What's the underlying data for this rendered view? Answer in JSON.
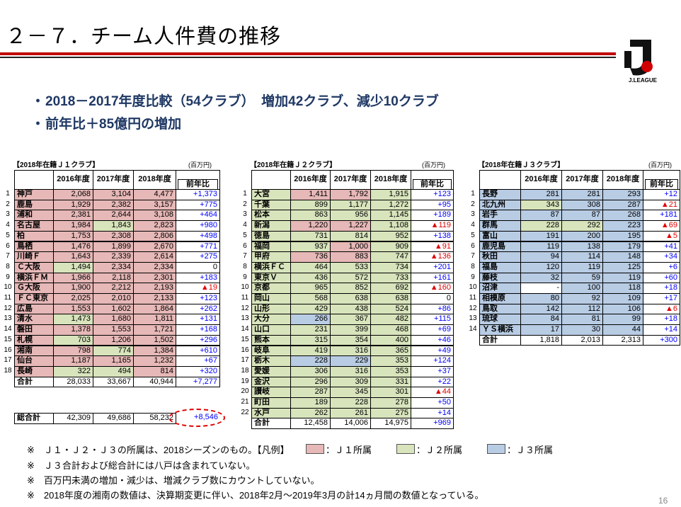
{
  "title": "２－７．チーム人件費の推移",
  "logo": "J.LEAGUE",
  "bullets": [
    "2018－2017年度比較（54クラブ）　増加42クラブ、減少10クラブ",
    "前年比＋85億円の増加"
  ],
  "legend": [
    {
      "color": "#e6b8b7",
      "label": "：Ｊ１所属"
    },
    {
      "color": "#d8e4bc",
      "label": "：Ｊ２所属"
    },
    {
      "color": "#b8cce4",
      "label": "：Ｊ３所属"
    }
  ],
  "tables": [
    {
      "caption": "【2018年在籍Ｊ１クラブ】",
      "unit": "(百万円)",
      "headers": [
        "2016年度",
        "2017年度",
        "2018年度",
        "前年比"
      ],
      "rows": [
        {
          "no": "1",
          "name": "神戸",
          "values": [
            "2,068",
            "3,104",
            "4,477"
          ],
          "diff": "+1,373",
          "fill": [
            0,
            0,
            0
          ]
        },
        {
          "no": "2",
          "name": "鹿島",
          "values": [
            "1,929",
            "2,382",
            "3,157"
          ],
          "diff": "+775",
          "fill": [
            0,
            0,
            0
          ]
        },
        {
          "no": "3",
          "name": "浦和",
          "values": [
            "2,381",
            "2,644",
            "3,108"
          ],
          "diff": "+464",
          "fill": [
            0,
            0,
            0
          ]
        },
        {
          "no": "4",
          "name": "名古屋",
          "values": [
            "1,984",
            "1,843",
            "2,823"
          ],
          "diff": "+980",
          "fill": [
            0,
            1,
            0
          ]
        },
        {
          "no": "5",
          "name": "柏",
          "values": [
            "1,753",
            "2,308",
            "2,806"
          ],
          "diff": "+498",
          "fill": [
            0,
            0,
            0
          ]
        },
        {
          "no": "6",
          "name": "鳥栖",
          "values": [
            "1,476",
            "1,899",
            "2,670"
          ],
          "diff": "+771",
          "fill": [
            0,
            0,
            0
          ]
        },
        {
          "no": "7",
          "name": "川崎Ｆ",
          "values": [
            "1,643",
            "2,339",
            "2,614"
          ],
          "diff": "+275",
          "fill": [
            0,
            0,
            0
          ]
        },
        {
          "no": "8",
          "name": "Ｃ大阪",
          "values": [
            "1,494",
            "2,334",
            "2,334"
          ],
          "diff": "0",
          "fill": [
            1,
            0,
            0
          ]
        },
        {
          "no": "9",
          "name": "横浜ＦＭ",
          "values": [
            "1,966",
            "2,118",
            "2,301"
          ],
          "diff": "+183",
          "fill": [
            0,
            0,
            0
          ]
        },
        {
          "no": "10",
          "name": "Ｇ大阪",
          "values": [
            "1,900",
            "2,212",
            "2,193"
          ],
          "diff": "▲19",
          "fill": [
            0,
            0,
            0
          ]
        },
        {
          "no": "11",
          "name": "ＦＣ東京",
          "values": [
            "2,025",
            "2,010",
            "2,133"
          ],
          "diff": "+123",
          "fill": [
            0,
            0,
            0
          ]
        },
        {
          "no": "12",
          "name": "広島",
          "values": [
            "1,553",
            "1,602",
            "1,864"
          ],
          "diff": "+262",
          "fill": [
            0,
            0,
            0
          ]
        },
        {
          "no": "13",
          "name": "清水",
          "values": [
            "1,473",
            "1,680",
            "1,811"
          ],
          "diff": "+131",
          "fill": [
            1,
            0,
            0
          ]
        },
        {
          "no": "14",
          "name": "磐田",
          "values": [
            "1,378",
            "1,553",
            "1,721"
          ],
          "diff": "+168",
          "fill": [
            0,
            0,
            0
          ]
        },
        {
          "no": "15",
          "name": "札幌",
          "values": [
            "703",
            "1,206",
            "1,502"
          ],
          "diff": "+296",
          "fill": [
            1,
            0,
            0
          ]
        },
        {
          "no": "16",
          "name": "湘南",
          "values": [
            "798",
            "774",
            "1,384"
          ],
          "diff": "+610",
          "fill": [
            0,
            1,
            0
          ]
        },
        {
          "no": "17",
          "name": "仙台",
          "values": [
            "1,187",
            "1,165",
            "1,232"
          ],
          "diff": "+67",
          "fill": [
            0,
            0,
            0
          ]
        },
        {
          "no": "18",
          "name": "長崎",
          "values": [
            "322",
            "494",
            "814"
          ],
          "diff": "+320",
          "fill": [
            1,
            1,
            0
          ]
        }
      ],
      "total": {
        "label": "合計",
        "values": [
          "28,033",
          "33,667",
          "40,944"
        ],
        "diff": "+7,277"
      }
    },
    {
      "caption": "【2018年在籍Ｊ２クラブ】",
      "unit": "(百万円)",
      "headers": [
        "2016年度",
        "2017年度",
        "2018年度",
        "前年比"
      ],
      "rows": [
        {
          "no": "1",
          "name": "大宮",
          "values": [
            "1,411",
            "1,792",
            "1,915"
          ],
          "diff": "+123",
          "fill": [
            0,
            0,
            1
          ]
        },
        {
          "no": "2",
          "name": "千葉",
          "values": [
            "899",
            "1,177",
            "1,272"
          ],
          "diff": "+95",
          "fill": [
            1,
            1,
            1
          ]
        },
        {
          "no": "3",
          "name": "松本",
          "values": [
            "863",
            "956",
            "1,145"
          ],
          "diff": "+189",
          "fill": [
            1,
            1,
            1
          ]
        },
        {
          "no": "4",
          "name": "新潟",
          "values": [
            "1,220",
            "1,227",
            "1,108"
          ],
          "diff": "▲119",
          "fill": [
            0,
            0,
            1
          ]
        },
        {
          "no": "5",
          "name": "徳島",
          "values": [
            "731",
            "814",
            "952"
          ],
          "diff": "+138",
          "fill": [
            1,
            1,
            1
          ]
        },
        {
          "no": "6",
          "name": "福岡",
          "values": [
            "937",
            "1,000",
            "909"
          ],
          "diff": "▲91",
          "fill": [
            1,
            0,
            1
          ]
        },
        {
          "no": "7",
          "name": "甲府",
          "values": [
            "736",
            "883",
            "747"
          ],
          "diff": "▲136",
          "fill": [
            0,
            0,
            1
          ]
        },
        {
          "no": "8",
          "name": "横浜ＦＣ",
          "values": [
            "464",
            "533",
            "734"
          ],
          "diff": "+201",
          "fill": [
            1,
            1,
            1
          ]
        },
        {
          "no": "9",
          "name": "東京Ｖ",
          "values": [
            "436",
            "572",
            "733"
          ],
          "diff": "+161",
          "fill": [
            1,
            1,
            1
          ]
        },
        {
          "no": "10",
          "name": "京都",
          "values": [
            "965",
            "852",
            "692"
          ],
          "diff": "▲160",
          "fill": [
            1,
            1,
            1
          ]
        },
        {
          "no": "11",
          "name": "岡山",
          "values": [
            "568",
            "638",
            "638"
          ],
          "diff": "0",
          "fill": [
            1,
            1,
            1
          ]
        },
        {
          "no": "12",
          "name": "山形",
          "values": [
            "429",
            "438",
            "524"
          ],
          "diff": "+86",
          "fill": [
            1,
            1,
            1
          ]
        },
        {
          "no": "13",
          "name": "大分",
          "values": [
            "266",
            "367",
            "482"
          ],
          "diff": "+115",
          "fill": [
            2,
            1,
            1
          ]
        },
        {
          "no": "14",
          "name": "山口",
          "values": [
            "231",
            "399",
            "468"
          ],
          "diff": "+69",
          "fill": [
            1,
            1,
            1
          ]
        },
        {
          "no": "15",
          "name": "熊本",
          "values": [
            "315",
            "354",
            "400"
          ],
          "diff": "+46",
          "fill": [
            1,
            1,
            1
          ]
        },
        {
          "no": "16",
          "name": "岐阜",
          "values": [
            "419",
            "316",
            "365"
          ],
          "diff": "+49",
          "fill": [
            1,
            1,
            1
          ]
        },
        {
          "no": "17",
          "name": "栃木",
          "values": [
            "228",
            "229",
            "353"
          ],
          "diff": "+124",
          "fill": [
            2,
            2,
            1
          ]
        },
        {
          "no": "18",
          "name": "愛媛",
          "values": [
            "306",
            "316",
            "353"
          ],
          "diff": "+37",
          "fill": [
            1,
            1,
            1
          ]
        },
        {
          "no": "19",
          "name": "金沢",
          "values": [
            "296",
            "309",
            "331"
          ],
          "diff": "+22",
          "fill": [
            1,
            1,
            1
          ]
        },
        {
          "no": "20",
          "name": "讃岐",
          "values": [
            "287",
            "345",
            "301"
          ],
          "diff": "▲44",
          "fill": [
            1,
            1,
            1
          ]
        },
        {
          "no": "21",
          "name": "町田",
          "values": [
            "189",
            "228",
            "278"
          ],
          "diff": "+50",
          "fill": [
            1,
            1,
            1
          ]
        },
        {
          "no": "22",
          "name": "水戸",
          "values": [
            "262",
            "261",
            "275"
          ],
          "diff": "+14",
          "fill": [
            1,
            1,
            1
          ]
        }
      ],
      "total": {
        "label": "合計",
        "values": [
          "12,458",
          "14,006",
          "14,975"
        ],
        "diff": "+969"
      }
    },
    {
      "caption": "【2018年在籍Ｊ３クラブ】",
      "unit": "(百万円)",
      "headers": [
        "2016年度",
        "2017年度",
        "2018年度",
        "前年比"
      ],
      "rows": [
        {
          "no": "1",
          "name": "長野",
          "values": [
            "281",
            "281",
            "293"
          ],
          "diff": "+12",
          "fill": [
            2,
            2,
            2
          ]
        },
        {
          "no": "2",
          "name": "北九州",
          "values": [
            "343",
            "308",
            "287"
          ],
          "diff": "▲21",
          "fill": [
            1,
            2,
            2
          ]
        },
        {
          "no": "3",
          "name": "岩手",
          "values": [
            "87",
            "87",
            "268"
          ],
          "diff": "+181",
          "fill": [
            2,
            2,
            2
          ]
        },
        {
          "no": "4",
          "name": "群馬",
          "values": [
            "228",
            "292",
            "223"
          ],
          "diff": "▲69",
          "fill": [
            1,
            1,
            2
          ]
        },
        {
          "no": "5",
          "name": "富山",
          "values": [
            "191",
            "200",
            "195"
          ],
          "diff": "▲5",
          "fill": [
            2,
            2,
            2
          ]
        },
        {
          "no": "6",
          "name": "鹿児島",
          "values": [
            "119",
            "138",
            "179"
          ],
          "diff": "+41",
          "fill": [
            2,
            2,
            2
          ]
        },
        {
          "no": "7",
          "name": "秋田",
          "values": [
            "94",
            "114",
            "148"
          ],
          "diff": "+34",
          "fill": [
            2,
            2,
            2
          ]
        },
        {
          "no": "8",
          "name": "福島",
          "values": [
            "120",
            "119",
            "125"
          ],
          "diff": "+6",
          "fill": [
            2,
            2,
            2
          ]
        },
        {
          "no": "9",
          "name": "藤枝",
          "values": [
            "32",
            "59",
            "119"
          ],
          "diff": "+60",
          "fill": [
            2,
            2,
            2
          ]
        },
        {
          "no": "10",
          "name": "沼津",
          "values": [
            "-",
            "100",
            "118"
          ],
          "diff": "+18",
          "fill": [
            null,
            2,
            2
          ]
        },
        {
          "no": "11",
          "name": "相模原",
          "values": [
            "80",
            "92",
            "109"
          ],
          "diff": "+17",
          "fill": [
            2,
            2,
            2
          ]
        },
        {
          "no": "12",
          "name": "鳥取",
          "values": [
            "142",
            "112",
            "106"
          ],
          "diff": "▲6",
          "fill": [
            2,
            2,
            2
          ]
        },
        {
          "no": "13",
          "name": "琉球",
          "values": [
            "84",
            "81",
            "99"
          ],
          "diff": "+18",
          "fill": [
            2,
            2,
            2
          ]
        },
        {
          "no": "14",
          "name": "ＹＳ横浜",
          "values": [
            "17",
            "30",
            "44"
          ],
          "diff": "+14",
          "fill": [
            2,
            2,
            2
          ]
        }
      ],
      "total": {
        "label": "合計",
        "values": [
          "1,818",
          "2,013",
          "2,313"
        ],
        "diff": "+300"
      }
    }
  ],
  "grand_total": {
    "label": "総合計",
    "values": [
      "42,309",
      "49,686",
      "58,232"
    ],
    "diff": "+8,546"
  },
  "notes": [
    "※　Ｊ１・Ｊ２・Ｊ３の所属は、2018シーズンのもの。【凡例】",
    "※　Ｊ３合計および総合計には八戸は含まれていない。",
    "※　百万円未満の増加・減少は、増減クラブ数にカウントしていない。",
    "※　2018年度の湘南の数値は、決算期変更に伴い、2018年2月～2019年3月の計14ヵ月間の数値となっている。"
  ],
  "page_number": "16"
}
